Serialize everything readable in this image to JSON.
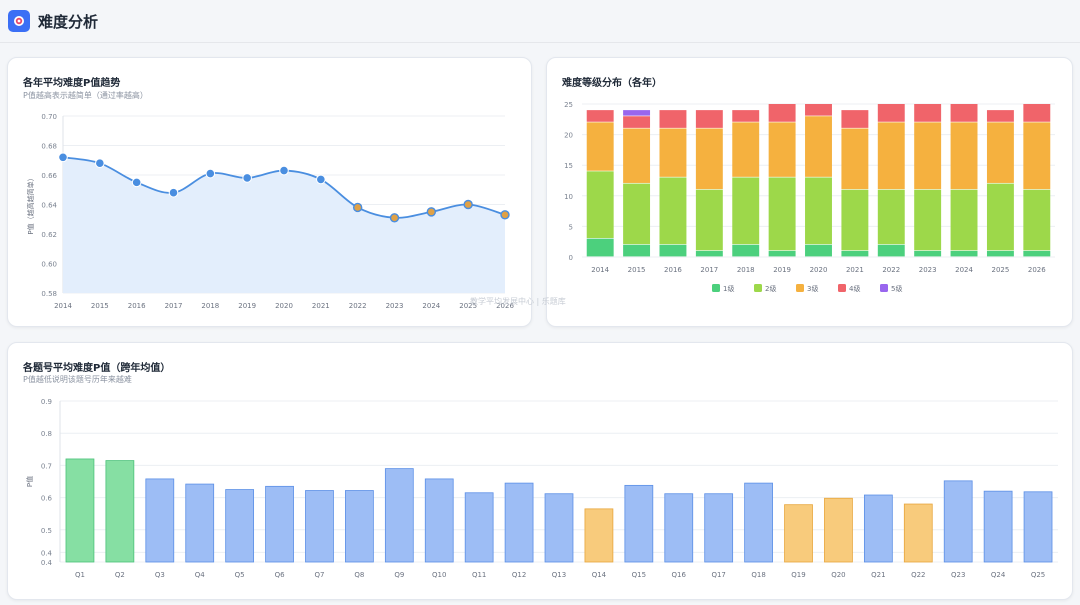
{
  "header": {
    "title": "难度分析",
    "icon": "target-icon",
    "accent": "#3b6ff5"
  },
  "trend": {
    "title": "各年平均难度P值趋势",
    "subtitle": "P值越高表示越简单（通过率越高）"
  },
  "dist": {
    "title": "难度等级分布（各年）"
  },
  "question": {
    "title": "各题号平均难度P值（跨年均值）",
    "subtitle": "P值越低说明该题号历年来越难"
  },
  "watermark": "教学平均发展中心 | 乐题库",
  "colors": {
    "line": "#4a8ee0",
    "area": "#e3eefc",
    "point_fill": "#4a8ee0",
    "point_fill_alt": "#e0a146",
    "level1": "#4cd07d",
    "level2": "#9dd84a",
    "level3": "#f5b13f",
    "level4": "#f0646a",
    "level5": "#9966ee",
    "bar_green": "#86dfa3",
    "bar_green_border": "#4cc27a",
    "bar_blue": "#9dbdf5",
    "bar_blue_border": "#5b8fe6",
    "bar_orange": "#f8cb7c",
    "bar_orange_border": "#e8a63c"
  },
  "chart_data": [
    {
      "id": "trend",
      "type": "line",
      "x": [
        "2014",
        "2015",
        "2016",
        "2017",
        "2018",
        "2019",
        "2020",
        "2021",
        "2022",
        "2023",
        "2024",
        "2025",
        "2026"
      ],
      "values": [
        0.672,
        0.668,
        0.655,
        0.648,
        0.661,
        0.658,
        0.663,
        0.657,
        0.638,
        0.631,
        0.635,
        0.64,
        0.633
      ],
      "highlight_from_index": 8,
      "ylabel": "P值（越高越简单）",
      "ylim": [
        0.58,
        0.7
      ],
      "yticks": [
        "0.58",
        "0.60",
        "0.62",
        "0.64",
        "0.66",
        "0.68",
        "0.70"
      ],
      "area_fill": true,
      "grid": true
    },
    {
      "id": "dist",
      "type": "bar",
      "stacked": true,
      "categories": [
        "2014",
        "2015",
        "2016",
        "2017",
        "2018",
        "2019",
        "2020",
        "2021",
        "2022",
        "2023",
        "2024",
        "2025",
        "2026"
      ],
      "series": [
        {
          "name": "1级",
          "values": [
            3,
            2,
            2,
            1,
            2,
            1,
            2,
            1,
            2,
            1,
            1,
            1,
            1
          ]
        },
        {
          "name": "2级",
          "values": [
            11,
            10,
            11,
            10,
            11,
            12,
            11,
            10,
            9,
            10,
            10,
            11,
            10
          ]
        },
        {
          "name": "3级",
          "values": [
            8,
            9,
            8,
            10,
            9,
            9,
            10,
            10,
            11,
            11,
            11,
            10,
            11
          ]
        },
        {
          "name": "4级",
          "values": [
            2,
            2,
            3,
            3,
            2,
            3,
            2,
            3,
            3,
            3,
            3,
            2,
            3
          ]
        },
        {
          "name": "5级",
          "values": [
            0,
            1,
            0,
            0,
            0,
            0,
            0,
            0,
            0,
            0,
            0,
            0,
            0
          ]
        }
      ],
      "ylim": [
        0,
        25
      ],
      "yticks": [
        "0",
        "5",
        "10",
        "15",
        "20",
        "25"
      ],
      "legend": "bottom",
      "grid": true
    },
    {
      "id": "question",
      "type": "bar",
      "categories": [
        "Q1",
        "Q2",
        "Q3",
        "Q4",
        "Q5",
        "Q6",
        "Q7",
        "Q8",
        "Q9",
        "Q10",
        "Q11",
        "Q12",
        "Q13",
        "Q14",
        "Q15",
        "Q16",
        "Q17",
        "Q18",
        "Q19",
        "Q20",
        "Q21",
        "Q22",
        "Q23",
        "Q24",
        "Q25"
      ],
      "values": [
        0.72,
        0.715,
        0.658,
        0.642,
        0.625,
        0.635,
        0.622,
        0.622,
        0.69,
        0.658,
        0.615,
        0.645,
        0.612,
        0.565,
        0.638,
        0.612,
        0.612,
        0.645,
        0.578,
        0.598,
        0.608,
        0.58,
        0.652,
        0.62,
        0.618
      ],
      "bar_class": [
        "green",
        "green",
        "blue",
        "blue",
        "blue",
        "blue",
        "blue",
        "blue",
        "blue",
        "blue",
        "blue",
        "blue",
        "blue",
        "orange",
        "blue",
        "blue",
        "blue",
        "blue",
        "orange",
        "orange",
        "blue",
        "orange",
        "blue",
        "blue",
        "blue"
      ],
      "ylabel": "P值",
      "ylim": [
        0.4,
        0.9
      ],
      "yticks": [
        "0.4",
        "0.4",
        "0.5",
        "0.6",
        "0.7",
        "0.8",
        "0.9"
      ],
      "grid": true
    }
  ]
}
